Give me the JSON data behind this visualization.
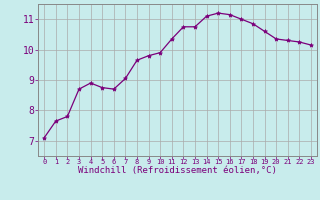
{
  "x": [
    0,
    1,
    2,
    3,
    4,
    5,
    6,
    7,
    8,
    9,
    10,
    11,
    12,
    13,
    14,
    15,
    16,
    17,
    18,
    19,
    20,
    21,
    22,
    23
  ],
  "y": [
    7.1,
    7.65,
    7.8,
    8.7,
    8.9,
    8.75,
    8.7,
    9.05,
    9.65,
    9.8,
    9.9,
    10.35,
    10.75,
    10.75,
    11.1,
    11.2,
    11.15,
    11.0,
    10.85,
    10.6,
    10.35,
    10.3,
    10.25,
    10.15
  ],
  "line_color": "#7b007b",
  "marker": "*",
  "marker_size": 3,
  "bg_color": "#c8ecec",
  "grid_color": "#aaaaaa",
  "xlabel": "Windchill (Refroidissement éolien,°C)",
  "xlabel_color": "#7b007b",
  "tick_color": "#7b007b",
  "ylim": [
    6.5,
    11.5
  ],
  "xlim": [
    -0.5,
    23.5
  ],
  "yticks": [
    7,
    8,
    9,
    10,
    11
  ],
  "xticks": [
    0,
    1,
    2,
    3,
    4,
    5,
    6,
    7,
    8,
    9,
    10,
    11,
    12,
    13,
    14,
    15,
    16,
    17,
    18,
    19,
    20,
    21,
    22,
    23
  ],
  "xlabel_fontsize": 6.5,
  "xtick_fontsize": 5.0,
  "ytick_fontsize": 7.0
}
